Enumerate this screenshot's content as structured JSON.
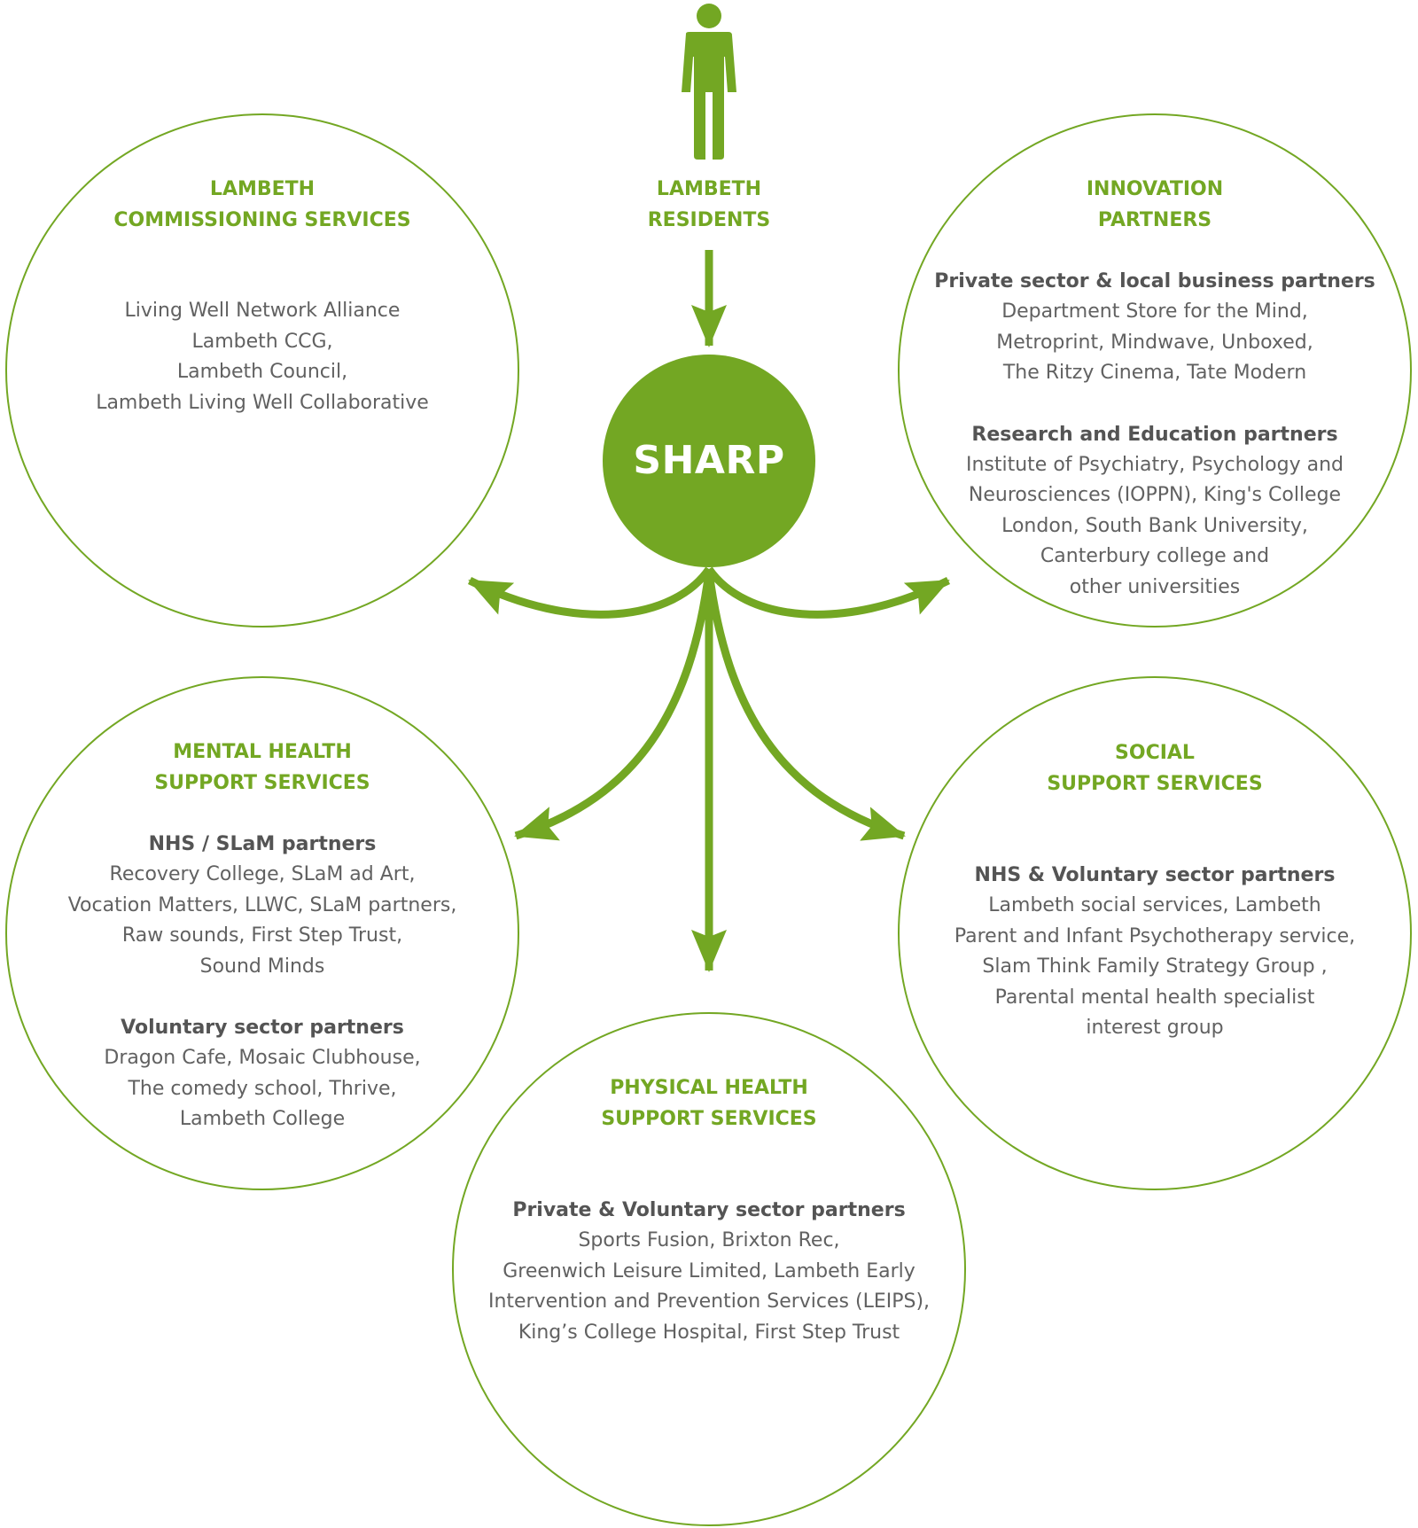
{
  "colors": {
    "accent": "#73a723",
    "heading_text": "#73a723",
    "subheading_text": "#545454",
    "body_text": "#616161",
    "hub_text": "#ffffff",
    "background": "#ffffff"
  },
  "icons": [
    "person-icon"
  ],
  "hub": {
    "label": "SHARP"
  },
  "residents": {
    "heading": [
      "LAMBETH",
      "RESIDENTS"
    ]
  },
  "commissioning": {
    "heading": [
      "LAMBETH",
      "COMMISSIONING SERVICES"
    ],
    "lines": [
      "Living Well Network Alliance",
      "Lambeth CCG,",
      "Lambeth Council,",
      "Lambeth Living Well Collaborative"
    ]
  },
  "innovation": {
    "heading": [
      "INNOVATION",
      "PARTNERS"
    ],
    "groups": [
      {
        "title": "Private sector & local business partners",
        "lines": [
          "Department Store for the Mind,",
          "Metroprint, Mindwave, Unboxed,",
          "The Ritzy Cinema, Tate Modern"
        ]
      },
      {
        "title": "Research and Education partners",
        "lines": [
          "Institute of Psychiatry, Psychology and",
          "Neurosciences (IOPPN), King's College",
          "London, South Bank University,",
          "Canterbury college and",
          "other universities"
        ]
      }
    ]
  },
  "mental_health": {
    "heading": [
      "MENTAL HEALTH",
      "SUPPORT SERVICES"
    ],
    "groups": [
      {
        "title": "NHS / SLaM partners",
        "lines": [
          "Recovery College, SLaM ad Art,",
          "Vocation Matters, LLWC, SLaM partners,",
          "Raw sounds, First Step Trust,",
          "Sound Minds"
        ]
      },
      {
        "title": "Voluntary sector partners",
        "lines": [
          "Dragon Cafe, Mosaic Clubhouse,",
          "The comedy school, Thrive,",
          "Lambeth College"
        ]
      }
    ]
  },
  "social": {
    "heading": [
      "SOCIAL",
      "SUPPORT SERVICES"
    ],
    "groups": [
      {
        "title": "NHS & Voluntary sector partners",
        "lines": [
          "Lambeth social services, Lambeth",
          "Parent and Infant Psychotherapy service,",
          "Slam Think Family Strategy Group ,",
          "Parental mental health specialist",
          "interest group"
        ]
      }
    ]
  },
  "physical_health": {
    "heading": [
      "PHYSICAL HEALTH",
      "SUPPORT SERVICES"
    ],
    "groups": [
      {
        "title": "Private & Voluntary sector partners",
        "lines": [
          "Sports Fusion, Brixton Rec,",
          "Greenwich Leisure Limited, Lambeth Early",
          "Intervention and Prevention Services (LEIPS),",
          "King’s College Hospital, First Step Trust"
        ]
      }
    ]
  }
}
